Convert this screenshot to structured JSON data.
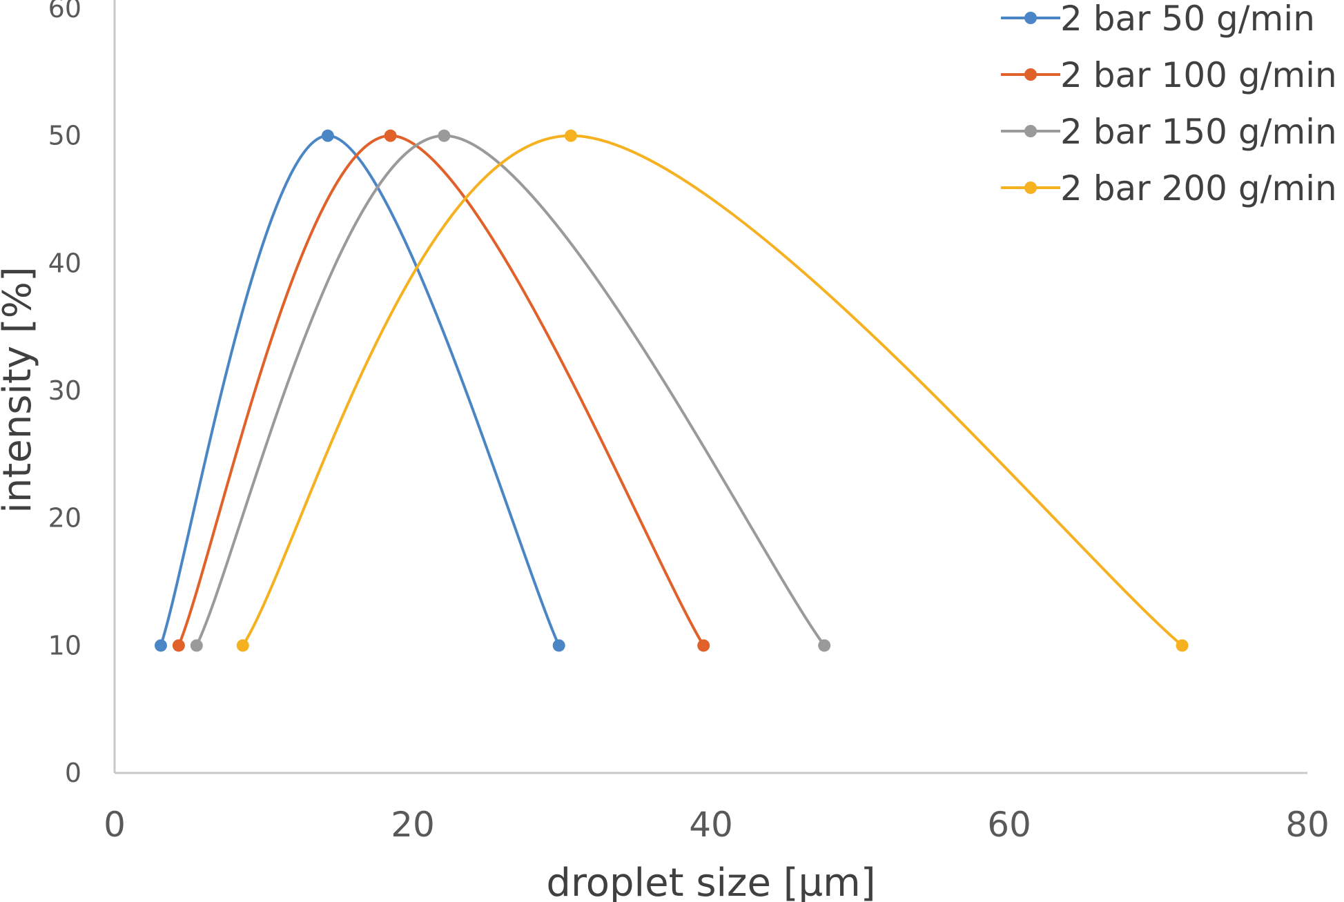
{
  "chart_data": {
    "type": "line",
    "title": "",
    "xlabel": "droplet size [µm]",
    "ylabel": "intensity [%]",
    "xlim": [
      0,
      80
    ],
    "ylim": [
      0,
      60
    ],
    "x_ticks": [
      "0",
      "20",
      "40",
      "60",
      "80"
    ],
    "y_ticks": [
      "0",
      "10",
      "20",
      "30",
      "40",
      "50",
      "60"
    ],
    "grid": false,
    "smooth": true,
    "markers": true,
    "legend_position": "top-right",
    "series": [
      {
        "name": "2 bar 50 g/min",
        "color": "#4a86c5",
        "points": [
          [
            3.1,
            10
          ],
          [
            14.3,
            50
          ],
          [
            29.8,
            10
          ]
        ]
      },
      {
        "name": "2 bar 100 g/min",
        "color": "#e0622a",
        "points": [
          [
            4.3,
            10
          ],
          [
            18.5,
            50
          ],
          [
            39.5,
            10
          ]
        ]
      },
      {
        "name": "2 bar 150 g/min",
        "color": "#9a9a9a",
        "points": [
          [
            5.5,
            10
          ],
          [
            22.1,
            50
          ],
          [
            47.6,
            10
          ]
        ]
      },
      {
        "name": "2 bar 200 g/min",
        "color": "#f5b120",
        "points": [
          [
            8.6,
            10
          ],
          [
            30.6,
            50
          ],
          [
            71.6,
            10
          ]
        ]
      }
    ]
  }
}
